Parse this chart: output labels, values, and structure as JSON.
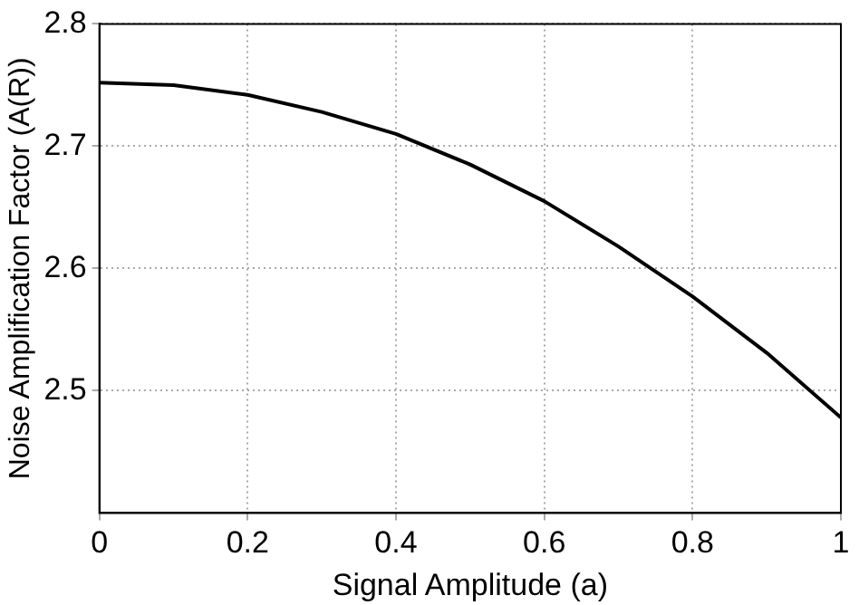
{
  "chart_data": {
    "type": "line",
    "xlabel": "Signal Amplitude (a)",
    "ylabel": "Noise Amplification Factor (A(R))",
    "x": [
      0,
      0.1,
      0.2,
      0.3,
      0.4,
      0.5,
      0.6,
      0.7,
      0.8,
      0.9,
      1
    ],
    "series": [
      {
        "color": "#000000",
        "values": [
          2.752,
          2.75,
          2.742,
          2.728,
          2.71,
          2.685,
          2.655,
          2.618,
          2.577,
          2.531,
          2.478
        ]
      }
    ],
    "xlim": [
      0,
      1
    ],
    "xticks": [
      0,
      0.2,
      0.4,
      0.6,
      0.8,
      1
    ],
    "ylim": [
      2.4,
      2.8
    ],
    "yticks": [
      2.5,
      2.6,
      2.7,
      2.8
    ],
    "grid": true,
    "legend": false,
    "marker": "none",
    "line_style": "solid"
  }
}
